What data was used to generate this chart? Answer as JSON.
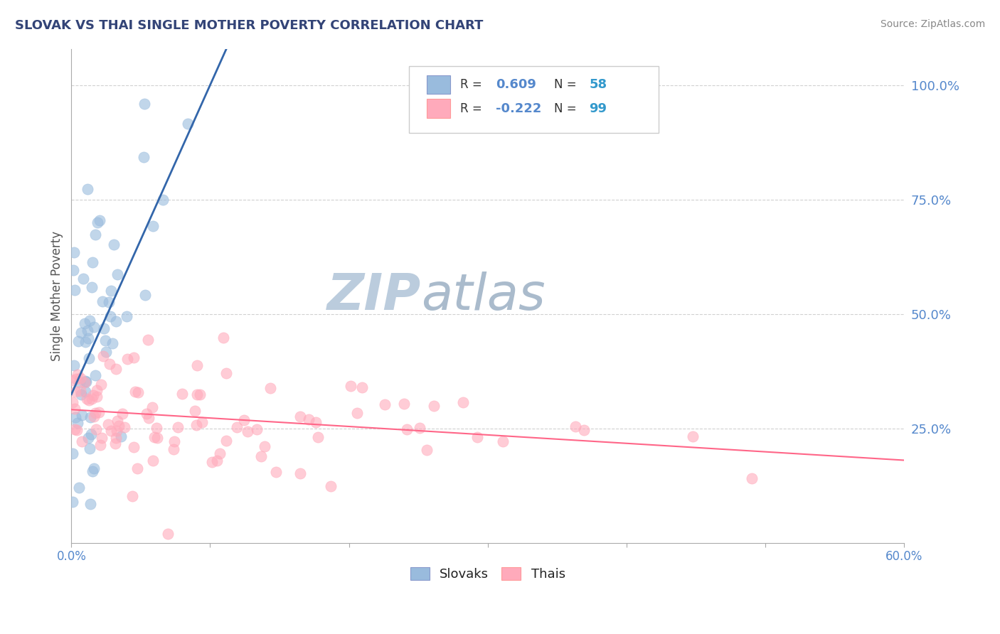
{
  "title": "SLOVAK VS THAI SINGLE MOTHER POVERTY CORRELATION CHART",
  "source": "Source: ZipAtlas.com",
  "ylabel": "Single Mother Poverty",
  "ytick_labels": [
    "25.0%",
    "50.0%",
    "75.0%",
    "100.0%"
  ],
  "ytick_values": [
    0.25,
    0.5,
    0.75,
    1.0
  ],
  "xtick_values": [
    0.0,
    0.1,
    0.2,
    0.3,
    0.4,
    0.5,
    0.6
  ],
  "xtick_labels": [
    "",
    "",
    "",
    "",
    "",
    "",
    ""
  ],
  "xmin": 0.0,
  "xmax": 0.6,
  "ymin": 0.0,
  "ymax": 1.08,
  "slovak_R": 0.609,
  "slovak_N": 58,
  "thai_R": -0.222,
  "thai_N": 99,
  "slovak_color": "#99BBDD",
  "thai_color": "#FFAABB",
  "slovak_line_color": "#3366AA",
  "thai_line_color": "#FF6688",
  "background_color": "#FFFFFF",
  "grid_color": "#CCCCCC",
  "title_color": "#334477",
  "axis_label_color": "#555555",
  "tick_color": "#5588CC",
  "legend_r_color": "#333333",
  "legend_n_color": "#3399CC",
  "watermark_zip_color": "#BBCCDD",
  "watermark_atlas_color": "#AABBCC"
}
